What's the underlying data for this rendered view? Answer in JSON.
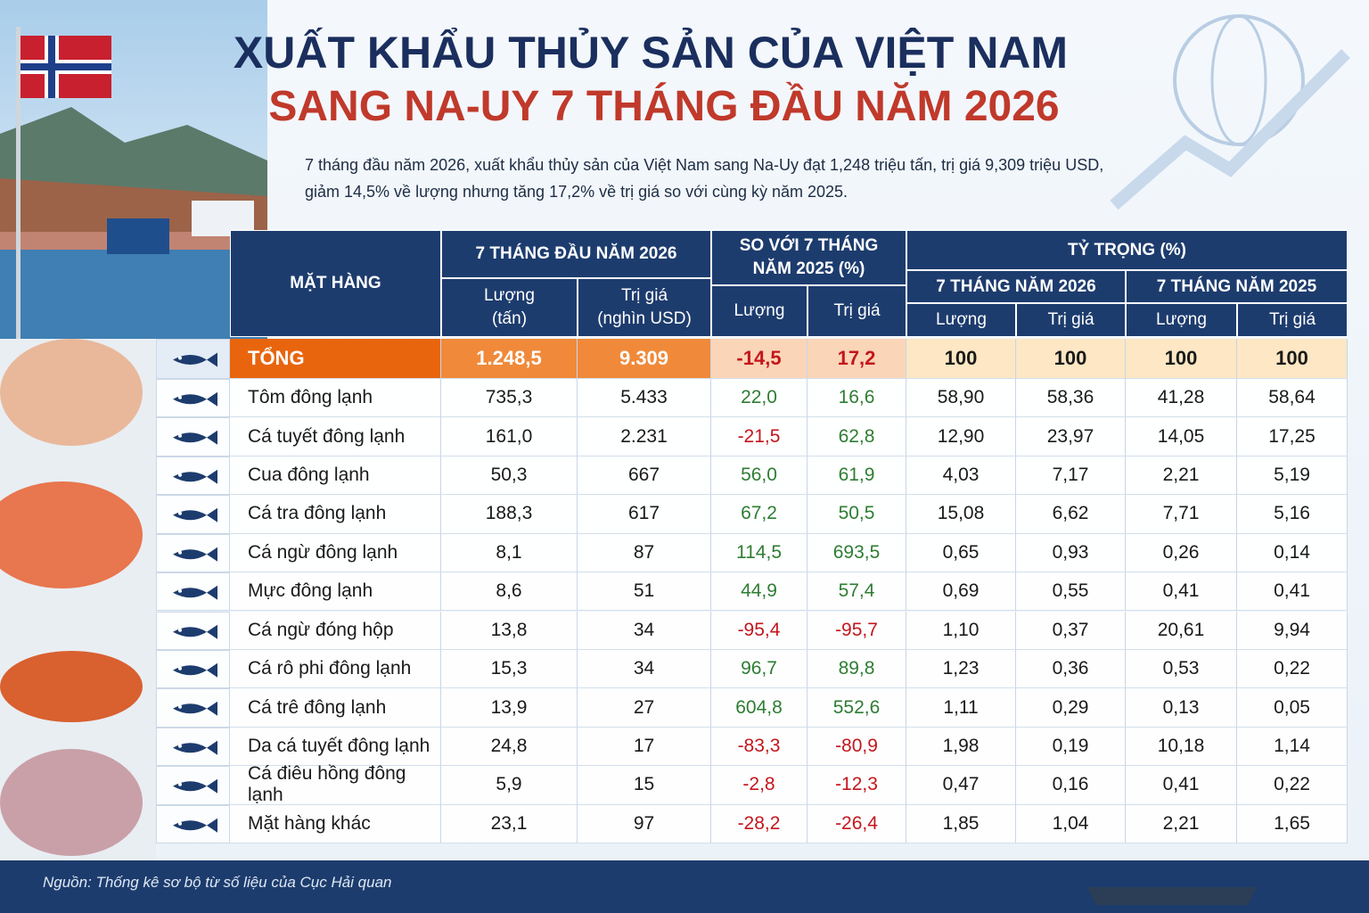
{
  "header": {
    "title_line1": "XUẤT KHẨU THỦY SẢN CỦA VIỆT NAM",
    "title_line2": "SANG NA-UY 7 THÁNG ĐẦU NĂM 2026",
    "intro": "7 tháng đầu năm 2026, xuất khẩu thủy sản của Việt Nam sang Na-Uy đạt 1,248 triệu tấn, trị giá 9,309 triệu USD, giảm 14,5% về lượng nhưng tăng 17,2% về trị giá so với cùng kỳ năm 2025."
  },
  "table": {
    "header": {
      "item": "MẶT HÀNG",
      "group_2026": "7 THÁNG ĐẦU NĂM 2026",
      "qty_tons": "Lượng (tấn)",
      "value_usd": "Trị giá (nghìn USD)",
      "group_change": "SO VỚI 7 THÁNG NĂM 2025 (%)",
      "change_qty": "Lượng",
      "change_value": "Trị giá",
      "group_share": "TỶ TRỌNG (%)",
      "share_2026": "7 THÁNG NĂM 2026",
      "share_2026_qty": "Lượng",
      "share_2026_value": "Trị giá",
      "share_2025": "7 THÁNG NĂM 2025",
      "share_2025_qty": "Lượng",
      "share_2025_value": "Trị giá"
    },
    "total": [
      "TỔNG",
      "1.248,5",
      "9.309",
      "-14,5",
      "17,2",
      "100",
      "100",
      "100",
      "100"
    ],
    "rows": [
      [
        "Tôm đông lạnh",
        "735,3",
        "5.433",
        "22,0",
        "16,6",
        "58,90",
        "58,36",
        "41,28",
        "58,64"
      ],
      [
        "Cá tuyết đông lạnh",
        "161,0",
        "2.231",
        "-21,5",
        "62,8",
        "12,90",
        "23,97",
        "14,05",
        "17,25"
      ],
      [
        "Cua đông lạnh",
        "50,3",
        "667",
        "56,0",
        "61,9",
        "4,03",
        "7,17",
        "2,21",
        "5,19"
      ],
      [
        "Cá tra đông lạnh",
        "188,3",
        "617",
        "67,2",
        "50,5",
        "15,08",
        "6,62",
        "7,71",
        "5,16"
      ],
      [
        "Cá ngừ đông lạnh",
        "8,1",
        "87",
        "114,5",
        "693,5",
        "0,65",
        "0,93",
        "0,26",
        "0,14"
      ],
      [
        "Mực đông lạnh",
        "8,6",
        "51",
        "44,9",
        "57,4",
        "0,69",
        "0,55",
        "0,41",
        "0,41"
      ],
      [
        "Cá ngừ đóng hộp",
        "13,8",
        "34",
        "-95,4",
        "-95,7",
        "1,10",
        "0,37",
        "20,61",
        "9,94"
      ],
      [
        "Cá rô phi đông lạnh",
        "15,3",
        "34",
        "96,7",
        "89,8",
        "1,23",
        "0,36",
        "0,53",
        "0,22"
      ],
      [
        "Cá trê đông lạnh",
        "13,9",
        "27",
        "604,8",
        "552,6",
        "1,11",
        "0,29",
        "0,13",
        "0,05"
      ],
      [
        "Da cá tuyết đông lạnh",
        "24,8",
        "17",
        "-83,3",
        "-80,9",
        "1,98",
        "0,19",
        "10,18",
        "1,14"
      ],
      [
        "Cá điêu hồng đông lạnh",
        "5,9",
        "15",
        "-2,8",
        "-12,3",
        "0,47",
        "0,16",
        "0,41",
        "0,22"
      ],
      [
        "Mặt hàng khác",
        "23,1",
        "97",
        "-28,2",
        "-26,4",
        "1,85",
        "1,04",
        "2,21",
        "1,65"
      ]
    ]
  },
  "footer": {
    "source": "Nguồn: Thống kê sơ bộ từ số liệu của Cục Hải quan"
  }
}
